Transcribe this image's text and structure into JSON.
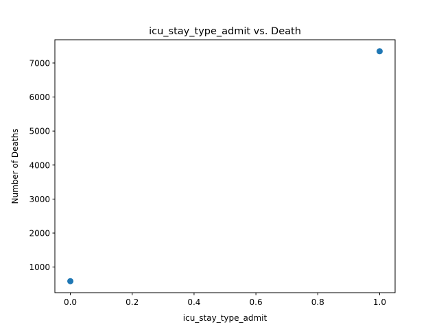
{
  "chart_data": {
    "type": "scatter",
    "title": "icu_stay_type_admit vs. Death",
    "xlabel": "icu_stay_type_admit",
    "ylabel": "Number of Deaths",
    "xlim": [
      -0.05,
      1.05
    ],
    "ylim": [
      247,
      7684
    ],
    "xticks": [
      0.0,
      0.2,
      0.4,
      0.6,
      0.8,
      1.0
    ],
    "xtick_labels": [
      "0.0",
      "0.2",
      "0.4",
      "0.6",
      "0.8",
      "1.0"
    ],
    "yticks": [
      1000,
      2000,
      3000,
      4000,
      5000,
      6000,
      7000
    ],
    "ytick_labels": [
      "1000",
      "2000",
      "3000",
      "4000",
      "5000",
      "6000",
      "7000"
    ],
    "grid": false,
    "marker_color": "#1f77b4",
    "series": [
      {
        "x": [
          0,
          1
        ],
        "y": [
          585,
          7346
        ]
      }
    ]
  }
}
